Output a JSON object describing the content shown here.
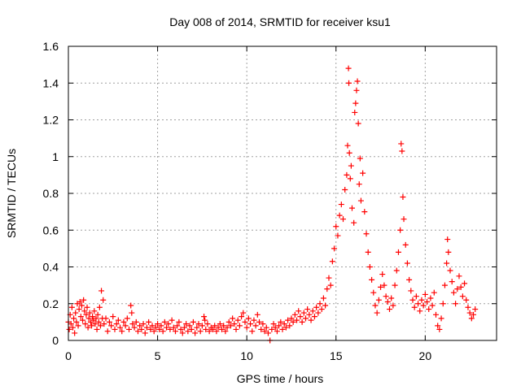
{
  "chart_data": {
    "type": "scatter",
    "title": "Day 008 of 2014, SRMTID for receiver ksu1",
    "xlabel": "GPS time / hours",
    "ylabel": "SRMTID / TECUs",
    "xlim": [
      0,
      24
    ],
    "ylim": [
      0,
      1.6
    ],
    "xticks": [
      0,
      5,
      10,
      15,
      20
    ],
    "yticks": [
      0,
      0.2,
      0.4,
      0.6,
      0.8,
      1,
      1.2,
      1.4,
      1.6
    ],
    "xtick_labels": [
      "0",
      "5",
      "10",
      "15",
      "20"
    ],
    "ytick_labels": [
      "0",
      "0.2",
      "0.4",
      "0.6",
      "0.8",
      "1",
      "1.2",
      "1.4",
      "1.6"
    ],
    "grid": true,
    "marker": "+",
    "color": "#ff0000",
    "series": [
      {
        "name": "ksu1",
        "points": [
          [
            0.0,
            0.1
          ],
          [
            0.05,
            0.06
          ],
          [
            0.1,
            0.14
          ],
          [
            0.15,
            0.09
          ],
          [
            0.2,
            0.18
          ],
          [
            0.25,
            0.07
          ],
          [
            0.3,
            0.12
          ],
          [
            0.35,
            0.04
          ],
          [
            0.4,
            0.15
          ],
          [
            0.45,
            0.1
          ],
          [
            0.5,
            0.2
          ],
          [
            0.55,
            0.08
          ],
          [
            0.6,
            0.17
          ],
          [
            0.65,
            0.21
          ],
          [
            0.7,
            0.13
          ],
          [
            0.75,
            0.19
          ],
          [
            0.8,
            0.11
          ],
          [
            0.85,
            0.22
          ],
          [
            0.9,
            0.16
          ],
          [
            0.95,
            0.09
          ],
          [
            1.0,
            0.14
          ],
          [
            1.05,
            0.18
          ],
          [
            1.1,
            0.07
          ],
          [
            1.15,
            0.12
          ],
          [
            1.2,
            0.15
          ],
          [
            1.25,
            0.1
          ],
          [
            1.3,
            0.08
          ],
          [
            1.35,
            0.13
          ],
          [
            1.4,
            0.11
          ],
          [
            1.45,
            0.16
          ],
          [
            1.5,
            0.09
          ],
          [
            1.55,
            0.12
          ],
          [
            1.6,
            0.06
          ],
          [
            1.65,
            0.14
          ],
          [
            1.7,
            0.1
          ],
          [
            1.75,
            0.18
          ],
          [
            1.8,
            0.08
          ],
          [
            1.85,
            0.27
          ],
          [
            1.9,
            0.12
          ],
          [
            1.95,
            0.22
          ],
          [
            2.0,
            0.09
          ],
          [
            2.1,
            0.12
          ],
          [
            2.2,
            0.05
          ],
          [
            2.3,
            0.1
          ],
          [
            2.4,
            0.08
          ],
          [
            2.5,
            0.13
          ],
          [
            2.6,
            0.06
          ],
          [
            2.7,
            0.09
          ],
          [
            2.8,
            0.11
          ],
          [
            2.9,
            0.07
          ],
          [
            3.0,
            0.05
          ],
          [
            3.1,
            0.1
          ],
          [
            3.2,
            0.08
          ],
          [
            3.3,
            0.12
          ],
          [
            3.4,
            0.06
          ],
          [
            3.5,
            0.19
          ],
          [
            3.55,
            0.15
          ],
          [
            3.6,
            0.09
          ],
          [
            3.7,
            0.07
          ],
          [
            3.8,
            0.1
          ],
          [
            3.9,
            0.05
          ],
          [
            4.0,
            0.08
          ],
          [
            4.1,
            0.06
          ],
          [
            4.2,
            0.09
          ],
          [
            4.3,
            0.04
          ],
          [
            4.4,
            0.07
          ],
          [
            4.5,
            0.1
          ],
          [
            4.6,
            0.06
          ],
          [
            4.7,
            0.08
          ],
          [
            4.8,
            0.05
          ],
          [
            4.9,
            0.07
          ],
          [
            5.0,
            0.09
          ],
          [
            5.1,
            0.06
          ],
          [
            5.2,
            0.08
          ],
          [
            5.3,
            0.05
          ],
          [
            5.4,
            0.1
          ],
          [
            5.5,
            0.07
          ],
          [
            5.6,
            0.09
          ],
          [
            5.7,
            0.06
          ],
          [
            5.8,
            0.11
          ],
          [
            5.9,
            0.07
          ],
          [
            6.0,
            0.05
          ],
          [
            6.1,
            0.08
          ],
          [
            6.2,
            0.1
          ],
          [
            6.3,
            0.06
          ],
          [
            6.4,
            0.04
          ],
          [
            6.5,
            0.07
          ],
          [
            6.6,
            0.09
          ],
          [
            6.7,
            0.05
          ],
          [
            6.8,
            0.08
          ],
          [
            6.9,
            0.06
          ],
          [
            7.0,
            0.1
          ],
          [
            7.1,
            0.04
          ],
          [
            7.2,
            0.07
          ],
          [
            7.3,
            0.09
          ],
          [
            7.4,
            0.05
          ],
          [
            7.5,
            0.08
          ],
          [
            7.6,
            0.13
          ],
          [
            7.65,
            0.11
          ],
          [
            7.7,
            0.06
          ],
          [
            7.8,
            0.09
          ],
          [
            7.9,
            0.05
          ],
          [
            8.0,
            0.07
          ],
          [
            8.1,
            0.06
          ],
          [
            8.2,
            0.08
          ],
          [
            8.3,
            0.05
          ],
          [
            8.4,
            0.07
          ],
          [
            8.5,
            0.09
          ],
          [
            8.6,
            0.06
          ],
          [
            8.7,
            0.08
          ],
          [
            8.8,
            0.05
          ],
          [
            8.9,
            0.07
          ],
          [
            9.0,
            0.1
          ],
          [
            9.1,
            0.08
          ],
          [
            9.2,
            0.12
          ],
          [
            9.3,
            0.09
          ],
          [
            9.4,
            0.06
          ],
          [
            9.5,
            0.11
          ],
          [
            9.6,
            0.08
          ],
          [
            9.7,
            0.13
          ],
          [
            9.8,
            0.15
          ],
          [
            9.9,
            0.1
          ],
          [
            10.0,
            0.07
          ],
          [
            10.1,
            0.12
          ],
          [
            10.2,
            0.09
          ],
          [
            10.3,
            0.05
          ],
          [
            10.4,
            0.11
          ],
          [
            10.5,
            0.08
          ],
          [
            10.6,
            0.14
          ],
          [
            10.7,
            0.1
          ],
          [
            10.8,
            0.06
          ],
          [
            10.9,
            0.09
          ],
          [
            11.0,
            0.05
          ],
          [
            11.1,
            0.07
          ],
          [
            11.2,
            0.04
          ],
          [
            11.3,
            0.0
          ],
          [
            11.4,
            0.06
          ],
          [
            11.5,
            0.09
          ],
          [
            11.6,
            0.07
          ],
          [
            11.7,
            0.05
          ],
          [
            11.8,
            0.08
          ],
          [
            11.9,
            0.1
          ],
          [
            12.0,
            0.06
          ],
          [
            12.1,
            0.09
          ],
          [
            12.2,
            0.07
          ],
          [
            12.3,
            0.11
          ],
          [
            12.4,
            0.08
          ],
          [
            12.5,
            0.12
          ],
          [
            12.6,
            0.1
          ],
          [
            12.7,
            0.14
          ],
          [
            12.8,
            0.11
          ],
          [
            12.9,
            0.16
          ],
          [
            13.0,
            0.13
          ],
          [
            13.1,
            0.1
          ],
          [
            13.2,
            0.15
          ],
          [
            13.3,
            0.12
          ],
          [
            13.4,
            0.17
          ],
          [
            13.5,
            0.14
          ],
          [
            13.6,
            0.11
          ],
          [
            13.7,
            0.16
          ],
          [
            13.8,
            0.13
          ],
          [
            13.9,
            0.18
          ],
          [
            14.0,
            0.15
          ],
          [
            14.1,
            0.2
          ],
          [
            14.2,
            0.17
          ],
          [
            14.3,
            0.23
          ],
          [
            14.4,
            0.19
          ],
          [
            14.5,
            0.28
          ],
          [
            14.6,
            0.34
          ],
          [
            14.7,
            0.3
          ],
          [
            14.8,
            0.43
          ],
          [
            14.9,
            0.5
          ],
          [
            15.0,
            0.62
          ],
          [
            15.1,
            0.57
          ],
          [
            15.2,
            0.68
          ],
          [
            15.3,
            0.74
          ],
          [
            15.4,
            0.66
          ],
          [
            15.5,
            0.82
          ],
          [
            15.6,
            0.9
          ],
          [
            15.65,
            1.06
          ],
          [
            15.7,
            1.48
          ],
          [
            15.72,
            1.4
          ],
          [
            15.75,
            1.02
          ],
          [
            15.8,
            0.88
          ],
          [
            15.85,
            0.95
          ],
          [
            15.9,
            0.72
          ],
          [
            16.0,
            0.64
          ],
          [
            16.05,
            1.24
          ],
          [
            16.1,
            1.29
          ],
          [
            16.15,
            1.36
          ],
          [
            16.2,
            1.41
          ],
          [
            16.25,
            1.18
          ],
          [
            16.3,
            0.85
          ],
          [
            16.35,
            0.99
          ],
          [
            16.4,
            0.76
          ],
          [
            16.5,
            0.91
          ],
          [
            16.6,
            0.7
          ],
          [
            16.7,
            0.58
          ],
          [
            16.8,
            0.48
          ],
          [
            16.9,
            0.4
          ],
          [
            17.0,
            0.33
          ],
          [
            17.1,
            0.26
          ],
          [
            17.2,
            0.19
          ],
          [
            17.3,
            0.15
          ],
          [
            17.4,
            0.22
          ],
          [
            17.5,
            0.29
          ],
          [
            17.6,
            0.36
          ],
          [
            17.7,
            0.3
          ],
          [
            17.8,
            0.24
          ],
          [
            17.9,
            0.21
          ],
          [
            18.0,
            0.17
          ],
          [
            18.1,
            0.23
          ],
          [
            18.2,
            0.19
          ],
          [
            18.3,
            0.3
          ],
          [
            18.4,
            0.38
          ],
          [
            18.5,
            0.48
          ],
          [
            18.6,
            0.6
          ],
          [
            18.65,
            1.07
          ],
          [
            18.7,
            1.03
          ],
          [
            18.75,
            0.78
          ],
          [
            18.8,
            0.66
          ],
          [
            18.9,
            0.52
          ],
          [
            19.0,
            0.42
          ],
          [
            19.1,
            0.33
          ],
          [
            19.2,
            0.27
          ],
          [
            19.3,
            0.22
          ],
          [
            19.4,
            0.18
          ],
          [
            19.5,
            0.24
          ],
          [
            19.6,
            0.2
          ],
          [
            19.7,
            0.16
          ],
          [
            19.8,
            0.22
          ],
          [
            19.9,
            0.19
          ],
          [
            20.0,
            0.25
          ],
          [
            20.1,
            0.21
          ],
          [
            20.2,
            0.17
          ],
          [
            20.3,
            0.23
          ],
          [
            20.4,
            0.19
          ],
          [
            20.5,
            0.26
          ],
          [
            20.6,
            0.14
          ],
          [
            20.7,
            0.08
          ],
          [
            20.8,
            0.06
          ],
          [
            20.9,
            0.12
          ],
          [
            21.0,
            0.2
          ],
          [
            21.1,
            0.3
          ],
          [
            21.2,
            0.42
          ],
          [
            21.25,
            0.55
          ],
          [
            21.3,
            0.48
          ],
          [
            21.4,
            0.38
          ],
          [
            21.5,
            0.32
          ],
          [
            21.6,
            0.26
          ],
          [
            21.7,
            0.2
          ],
          [
            21.8,
            0.28
          ],
          [
            21.9,
            0.35
          ],
          [
            22.0,
            0.29
          ],
          [
            22.1,
            0.24
          ],
          [
            22.2,
            0.31
          ],
          [
            22.3,
            0.22
          ],
          [
            22.4,
            0.18
          ],
          [
            22.5,
            0.15
          ],
          [
            22.6,
            0.12
          ],
          [
            22.7,
            0.14
          ],
          [
            22.8,
            0.17
          ]
        ]
      }
    ]
  }
}
